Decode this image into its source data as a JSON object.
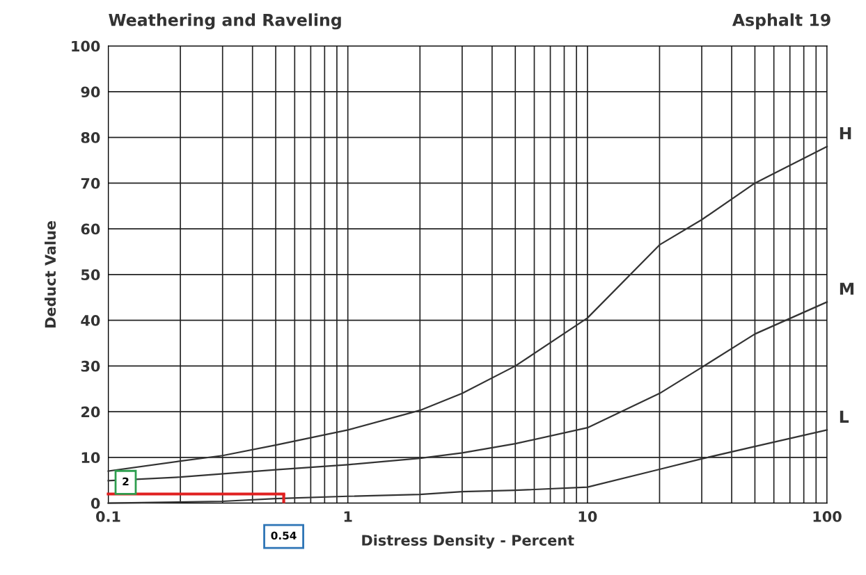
{
  "chart_data": {
    "type": "line",
    "title": "Weathering and Raveling",
    "subtitle": "Asphalt 19",
    "xlabel": "Distress Density - Percent",
    "ylabel": "Deduct Value",
    "log": "x",
    "grid": true,
    "legend": false,
    "xlim": [
      0.1,
      100
    ],
    "ylim": [
      0,
      100
    ],
    "xticks": [
      0.1,
      {
        "value": 0.2,
        "label": null
      },
      {
        "value": 0.3,
        "label": null
      },
      {
        "value": 0.4,
        "label": null
      },
      {
        "value": 0.5,
        "label": null
      },
      {
        "value": 0.6,
        "label": null
      },
      {
        "value": 0.7,
        "label": null
      },
      {
        "value": 0.8,
        "label": null
      },
      {
        "value": 0.9,
        "label": null
      },
      1,
      {
        "value": 2,
        "label": null
      },
      {
        "value": 3,
        "label": null
      },
      {
        "value": 4,
        "label": null
      },
      {
        "value": 5,
        "label": null
      },
      {
        "value": 6,
        "label": null
      },
      {
        "value": 7,
        "label": null
      },
      {
        "value": 8,
        "label": null
      },
      {
        "value": 9,
        "label": null
      },
      10,
      {
        "value": 20,
        "label": null
      },
      {
        "value": 30,
        "label": null
      },
      {
        "value": 40,
        "label": null
      },
      {
        "value": 50,
        "label": null
      },
      {
        "value": 60,
        "label": null
      },
      {
        "value": 70,
        "label": null
      },
      {
        "value": 80,
        "label": null
      },
      {
        "value": 90,
        "label": null
      },
      100
    ],
    "yticks": [
      0,
      10,
      20,
      30,
      40,
      50,
      60,
      70,
      80,
      90,
      100
    ],
    "series": [
      {
        "name": "H",
        "color": "#333333",
        "x": [
          0.1,
          0.2,
          0.3,
          0.5,
          1,
          2,
          3,
          5,
          10,
          20,
          30,
          50,
          100
        ],
        "values": [
          7,
          9.2,
          10.4,
          12.7,
          16,
          20.3,
          24,
          30,
          40.5,
          56.5,
          62,
          70,
          78
        ]
      },
      {
        "name": "M",
        "color": "#333333",
        "x": [
          0.1,
          0.2,
          0.5,
          1,
          2,
          3,
          5,
          10,
          20,
          30,
          50,
          100
        ],
        "values": [
          4.9,
          5.7,
          7.3,
          8.4,
          9.8,
          11,
          13,
          16.5,
          24,
          29.7,
          37,
          44
        ]
      },
      {
        "name": "L",
        "color": "#333333",
        "x": [
          0.1,
          0.3,
          0.5,
          1,
          2,
          3,
          5,
          10,
          20,
          30,
          50,
          100
        ],
        "values": [
          0,
          0.4,
          1,
          1.5,
          1.9,
          2.5,
          2.8,
          3.5,
          7.4,
          9.7,
          12.4,
          16
        ]
      },
      {
        "color": "#e02020",
        "x": [
          0.1,
          0.54
        ],
        "values": [
          2,
          2
        ]
      }
    ],
    "annotations": [
      {
        "text": "2",
        "x": 0.1,
        "y": 2
      },
      "0.54"
    ]
  }
}
